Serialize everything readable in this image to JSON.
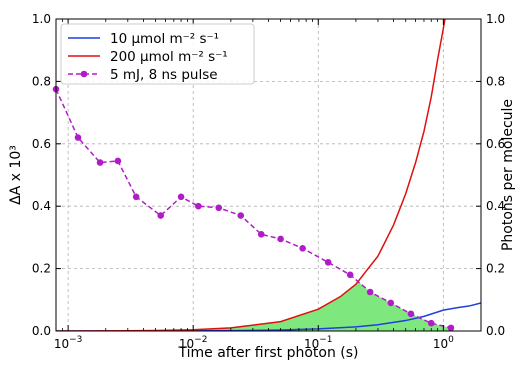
{
  "chart_data": {
    "type": "line",
    "xlabel": "Time after first photon (s)",
    "ylabel": "ΔA x 10³",
    "y2label": "Photons per molecule",
    "xscale": "log",
    "xlim": [
      0.0008,
      2.0
    ],
    "ylim": [
      0,
      1.0
    ],
    "y2lim": [
      0,
      1.0
    ],
    "grid": true,
    "legend_position": "top-left",
    "x_ticks": [
      {
        "value": 0.001,
        "base": "10",
        "exp": "−3"
      },
      {
        "value": 0.01,
        "base": "10",
        "exp": "−2"
      },
      {
        "value": 0.1,
        "base": "10",
        "exp": "−1"
      },
      {
        "value": 1,
        "base": "10",
        "exp": "0"
      }
    ],
    "y_ticks": [
      "0.0",
      "0.2",
      "0.4",
      "0.6",
      "0.8",
      "1.0"
    ],
    "y2_ticks": [
      "0.0",
      "0.2",
      "0.4",
      "0.6",
      "0.8",
      "1.0"
    ],
    "series": [
      {
        "name": "10 μmol m⁻² s⁻¹",
        "kind": "line",
        "axis": "right",
        "color": "#1f3fe0",
        "x": [
          0.0008,
          0.001,
          0.002,
          0.005,
          0.01,
          0.02,
          0.05,
          0.1,
          0.2,
          0.3,
          0.5,
          0.7,
          1.0,
          1.3,
          1.6,
          2.0
        ],
        "values": [
          0.0,
          0.0,
          0.0,
          0.0,
          0.0003,
          0.0011,
          0.0033,
          0.0067,
          0.0134,
          0.0201,
          0.0335,
          0.0469,
          0.067,
          0.075,
          0.08,
          0.09
        ]
      },
      {
        "name": "200 μmol m⁻² s⁻¹",
        "kind": "line",
        "axis": "right",
        "color": "#e01010",
        "x": [
          0.0008,
          0.001,
          0.002,
          0.005,
          0.01,
          0.02,
          0.05,
          0.1,
          0.15,
          0.2,
          0.3,
          0.4,
          0.5,
          0.6,
          0.7,
          0.8,
          0.9,
          1.0,
          1.05
        ],
        "values": [
          0.0001,
          0.0002,
          0.0005,
          0.0015,
          0.004,
          0.01,
          0.03,
          0.07,
          0.11,
          0.15,
          0.24,
          0.34,
          0.44,
          0.54,
          0.64,
          0.75,
          0.87,
          0.97,
          1.02
        ]
      },
      {
        "name": "5 mJ, 8 ns pulse",
        "kind": "line-markers",
        "axis": "left",
        "color": "#b01cc8",
        "x": [
          0.0008,
          0.0012,
          0.0018,
          0.0025,
          0.0035,
          0.0055,
          0.008,
          0.011,
          0.016,
          0.024,
          0.035,
          0.05,
          0.075,
          0.12,
          0.18,
          0.26,
          0.38,
          0.55,
          0.8,
          1.15
        ],
        "values": [
          0.775,
          0.62,
          0.54,
          0.545,
          0.43,
          0.37,
          0.43,
          0.4,
          0.395,
          0.37,
          0.31,
          0.295,
          0.265,
          0.22,
          0.18,
          0.125,
          0.09,
          0.055,
          0.025,
          0.01
        ]
      }
    ],
    "fill": {
      "color": "#7ee87e",
      "between": [
        "200 μmol m⁻² s⁻¹",
        "5 mJ, 8 ns pulse"
      ]
    }
  }
}
